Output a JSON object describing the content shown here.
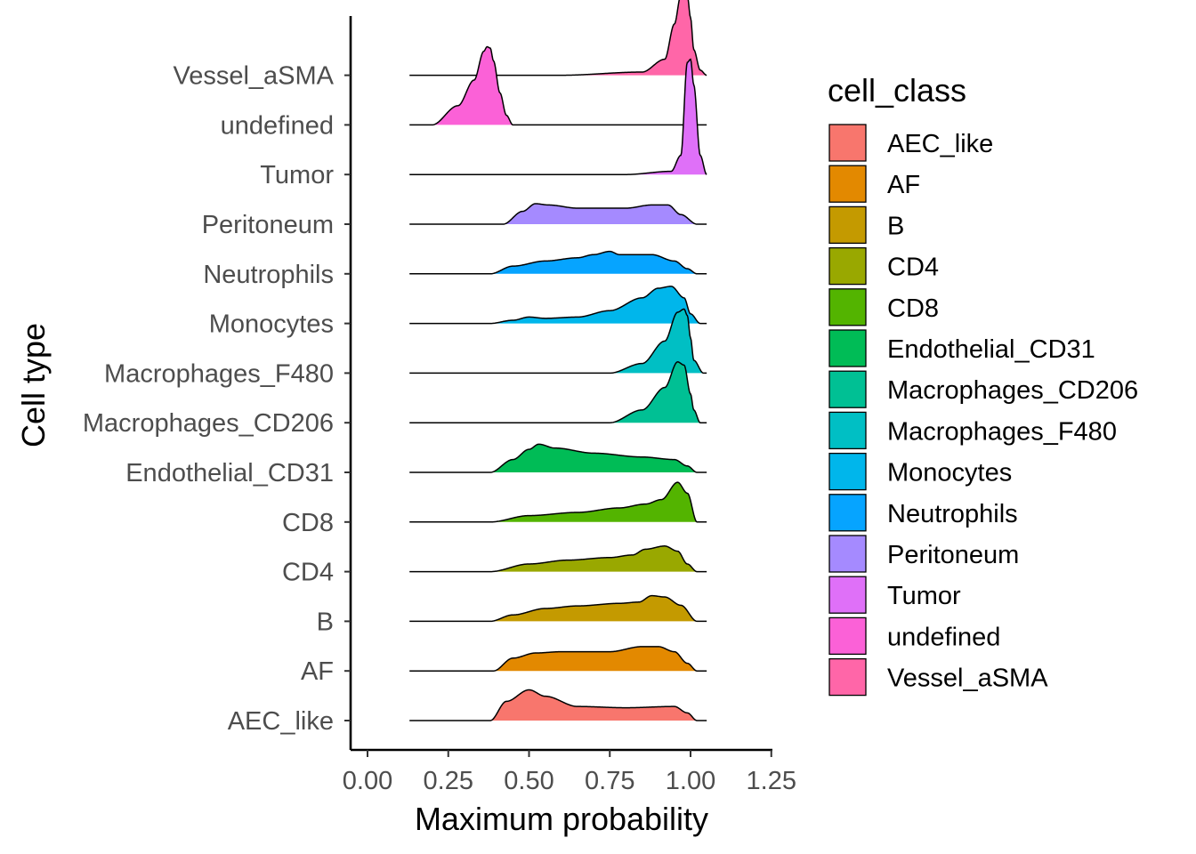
{
  "chart_data": {
    "type": "ridgeline",
    "xlabel": "Maximum probability",
    "ylabel": "Cell type",
    "xlim": [
      -0.07,
      1.27
    ],
    "xticks": [
      "0.00",
      "0.25",
      "0.50",
      "0.75",
      "1.00",
      "1.25"
    ],
    "xtick_values": [
      0,
      0.25,
      0.5,
      0.75,
      1.0,
      1.25
    ],
    "legend_title": "cell_class",
    "legend_position": "right",
    "grid": false,
    "density_range": [
      0.13,
      1.05
    ],
    "categories": [
      "AEC_like",
      "AF",
      "B",
      "CD4",
      "CD8",
      "Endothelial_CD31",
      "Macrophages_CD206",
      "Macrophages_F480",
      "Monocytes",
      "Neutrophils",
      "Peritoneum",
      "Tumor",
      "undefined",
      "Vessel_aSMA"
    ],
    "colors": [
      "#F8766D",
      "#E38900",
      "#C49A00",
      "#99A800",
      "#53B400",
      "#00BC56",
      "#00C094",
      "#00BFC4",
      "#00B6EB",
      "#06A4FF",
      "#A58AFF",
      "#DF70F8",
      "#FB61D7",
      "#FF66A8"
    ],
    "series": [
      {
        "name": "AEC_like",
        "fill": [
          0.38,
          1.02
        ],
        "points": [
          [
            0.38,
            0.0
          ],
          [
            0.43,
            0.3
          ],
          [
            0.5,
            0.48
          ],
          [
            0.55,
            0.38
          ],
          [
            0.65,
            0.22
          ],
          [
            0.8,
            0.2
          ],
          [
            0.95,
            0.22
          ],
          [
            0.99,
            0.12
          ],
          [
            1.02,
            0.0
          ]
        ]
      },
      {
        "name": "AF",
        "fill": [
          0.39,
          1.02
        ],
        "points": [
          [
            0.39,
            0.0
          ],
          [
            0.45,
            0.2
          ],
          [
            0.52,
            0.28
          ],
          [
            0.6,
            0.3
          ],
          [
            0.75,
            0.3
          ],
          [
            0.85,
            0.38
          ],
          [
            0.9,
            0.38
          ],
          [
            0.95,
            0.3
          ],
          [
            0.99,
            0.12
          ],
          [
            1.02,
            0.0
          ]
        ]
      },
      {
        "name": "B",
        "fill": [
          0.38,
          1.02
        ],
        "points": [
          [
            0.38,
            0.0
          ],
          [
            0.45,
            0.1
          ],
          [
            0.55,
            0.2
          ],
          [
            0.65,
            0.24
          ],
          [
            0.78,
            0.28
          ],
          [
            0.84,
            0.3
          ],
          [
            0.88,
            0.4
          ],
          [
            0.92,
            0.38
          ],
          [
            0.97,
            0.25
          ],
          [
            1.02,
            0.0
          ]
        ]
      },
      {
        "name": "CD4",
        "fill": [
          0.38,
          1.02
        ],
        "points": [
          [
            0.38,
            0.0
          ],
          [
            0.5,
            0.12
          ],
          [
            0.62,
            0.18
          ],
          [
            0.75,
            0.22
          ],
          [
            0.82,
            0.26
          ],
          [
            0.86,
            0.35
          ],
          [
            0.92,
            0.4
          ],
          [
            0.96,
            0.32
          ],
          [
            0.99,
            0.12
          ],
          [
            1.02,
            0.0
          ]
        ]
      },
      {
        "name": "CD8",
        "fill": [
          0.38,
          1.02
        ],
        "points": [
          [
            0.38,
            0.0
          ],
          [
            0.5,
            0.1
          ],
          [
            0.65,
            0.15
          ],
          [
            0.78,
            0.22
          ],
          [
            0.86,
            0.28
          ],
          [
            0.91,
            0.35
          ],
          [
            0.96,
            0.62
          ],
          [
            0.99,
            0.45
          ],
          [
            1.02,
            0.0
          ]
        ]
      },
      {
        "name": "Endothelial_CD31",
        "fill": [
          0.38,
          1.02
        ],
        "points": [
          [
            0.38,
            0.0
          ],
          [
            0.45,
            0.2
          ],
          [
            0.5,
            0.36
          ],
          [
            0.53,
            0.44
          ],
          [
            0.58,
            0.38
          ],
          [
            0.7,
            0.3
          ],
          [
            0.85,
            0.24
          ],
          [
            0.95,
            0.2
          ],
          [
            0.99,
            0.1
          ],
          [
            1.02,
            0.0
          ]
        ]
      },
      {
        "name": "Macrophages_CD206",
        "fill": [
          0.75,
          1.03
        ],
        "points": [
          [
            0.75,
            0.0
          ],
          [
            0.85,
            0.2
          ],
          [
            0.92,
            0.55
          ],
          [
            0.96,
            0.95
          ],
          [
            0.98,
            0.9
          ],
          [
            1.0,
            0.45
          ],
          [
            1.01,
            0.2
          ],
          [
            1.03,
            0.0
          ]
        ]
      },
      {
        "name": "Macrophages_F480",
        "fill": [
          0.75,
          1.04
        ],
        "points": [
          [
            0.75,
            0.0
          ],
          [
            0.85,
            0.15
          ],
          [
            0.92,
            0.5
          ],
          [
            0.96,
            0.95
          ],
          [
            0.98,
            1.0
          ],
          [
            0.99,
            0.9
          ],
          [
            1.0,
            0.55
          ],
          [
            1.01,
            0.2
          ],
          [
            1.04,
            0.0
          ]
        ]
      },
      {
        "name": "Monocytes",
        "fill": [
          0.38,
          1.03
        ],
        "points": [
          [
            0.38,
            0.0
          ],
          [
            0.45,
            0.05
          ],
          [
            0.5,
            0.1
          ],
          [
            0.55,
            0.08
          ],
          [
            0.65,
            0.1
          ],
          [
            0.75,
            0.2
          ],
          [
            0.85,
            0.4
          ],
          [
            0.9,
            0.55
          ],
          [
            0.94,
            0.58
          ],
          [
            0.98,
            0.4
          ],
          [
            1.0,
            0.15
          ],
          [
            1.03,
            0.0
          ]
        ]
      },
      {
        "name": "Neutrophils",
        "fill": [
          0.38,
          1.02
        ],
        "points": [
          [
            0.38,
            0.0
          ],
          [
            0.45,
            0.12
          ],
          [
            0.55,
            0.2
          ],
          [
            0.65,
            0.25
          ],
          [
            0.7,
            0.3
          ],
          [
            0.75,
            0.35
          ],
          [
            0.78,
            0.3
          ],
          [
            0.88,
            0.3
          ],
          [
            0.95,
            0.2
          ],
          [
            0.99,
            0.08
          ],
          [
            1.02,
            0.0
          ]
        ]
      },
      {
        "name": "Peritoneum",
        "fill": [
          0.42,
          1.02
        ],
        "points": [
          [
            0.42,
            0.0
          ],
          [
            0.48,
            0.2
          ],
          [
            0.52,
            0.32
          ],
          [
            0.56,
            0.3
          ],
          [
            0.65,
            0.25
          ],
          [
            0.8,
            0.25
          ],
          [
            0.88,
            0.3
          ],
          [
            0.93,
            0.3
          ],
          [
            0.97,
            0.15
          ],
          [
            1.02,
            0.0
          ]
        ]
      },
      {
        "name": "Tumor",
        "fill": [
          0.8,
          1.05
        ],
        "points": [
          [
            0.8,
            0.0
          ],
          [
            0.94,
            0.05
          ],
          [
            0.97,
            0.3
          ],
          [
            0.99,
            1.75
          ],
          [
            1.0,
            1.8
          ],
          [
            1.01,
            1.4
          ],
          [
            1.03,
            0.3
          ],
          [
            1.05,
            0.0
          ]
        ]
      },
      {
        "name": "undefined",
        "fill": [
          0.2,
          0.45
        ],
        "points": [
          [
            0.2,
            0.0
          ],
          [
            0.28,
            0.3
          ],
          [
            0.33,
            0.7
          ],
          [
            0.36,
            1.15
          ],
          [
            0.37,
            1.22
          ],
          [
            0.38,
            1.2
          ],
          [
            0.39,
            1.0
          ],
          [
            0.41,
            0.5
          ],
          [
            0.43,
            0.15
          ],
          [
            0.45,
            0.0
          ]
        ]
      },
      {
        "name": "Vessel_aSMA",
        "fill": [
          0.6,
          1.05
        ],
        "points": [
          [
            0.6,
            0.0
          ],
          [
            0.85,
            0.05
          ],
          [
            0.92,
            0.25
          ],
          [
            0.95,
            0.8
          ],
          [
            0.97,
            1.25
          ],
          [
            0.98,
            1.3
          ],
          [
            0.99,
            1.25
          ],
          [
            1.0,
            0.9
          ],
          [
            1.01,
            0.4
          ],
          [
            1.03,
            0.08
          ],
          [
            1.05,
            0.0
          ]
        ]
      }
    ]
  }
}
